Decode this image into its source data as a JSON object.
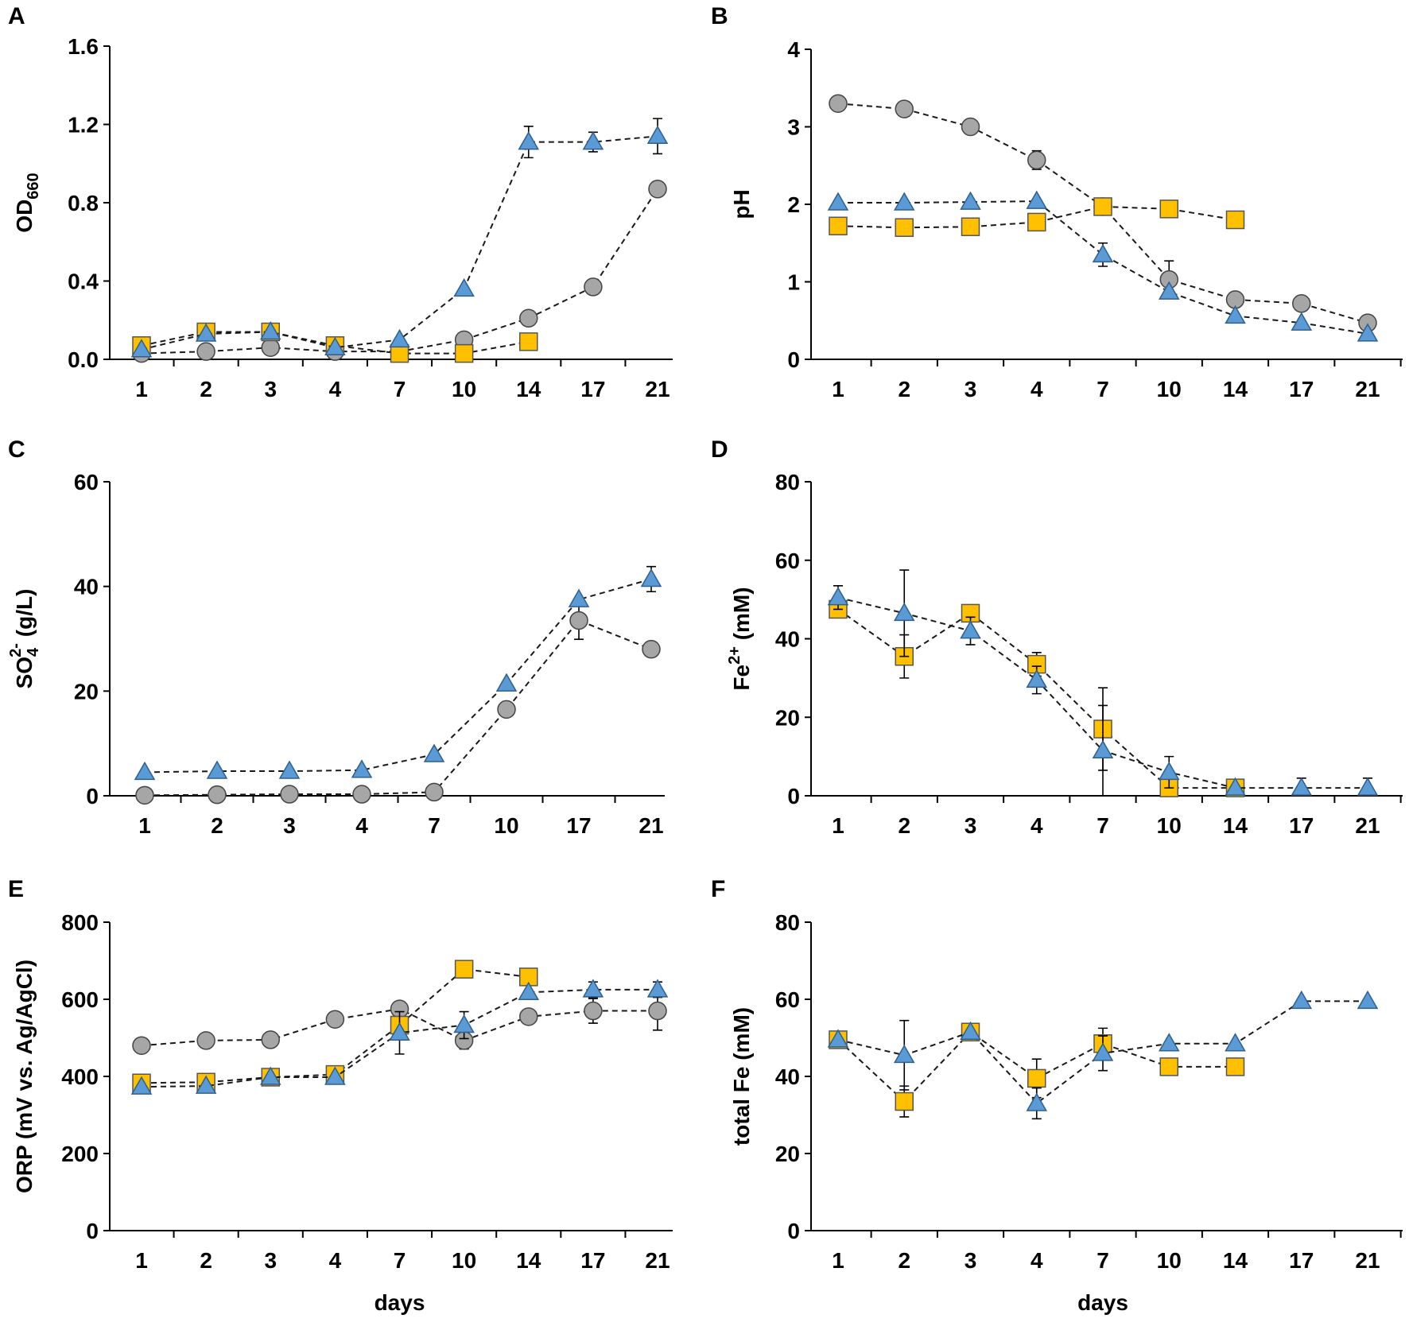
{
  "chart_data": [
    {
      "id": "A",
      "type": "line",
      "panel_label": "A",
      "categories": [
        "1",
        "2",
        "3",
        "4",
        "7",
        "10",
        "14",
        "17",
        "21"
      ],
      "ylabel": "OD",
      "ylabel_sub": "660",
      "xlabel": "",
      "ylim": [
        0,
        1.6
      ],
      "yticks": [
        "0.0",
        "0.4",
        "0.8",
        "1.2",
        "1.6"
      ],
      "series": [
        {
          "marker": "circle",
          "values": [
            0.03,
            0.04,
            0.06,
            0.04,
            0.04,
            0.1,
            0.21,
            0.37,
            0.87
          ],
          "errors": [
            0,
            0,
            0,
            0,
            0,
            0,
            0,
            0,
            0
          ]
        },
        {
          "marker": "square",
          "values": [
            0.07,
            0.14,
            0.14,
            0.07,
            0.03,
            0.03,
            0.09,
            null,
            null
          ],
          "errors": [
            0,
            0,
            0,
            0,
            0,
            0,
            0,
            null,
            null
          ]
        },
        {
          "marker": "triangle",
          "values": [
            0.05,
            0.13,
            0.14,
            0.06,
            0.1,
            0.36,
            1.11,
            1.11,
            1.14
          ],
          "errors": [
            0,
            0,
            0,
            0,
            0,
            0,
            0.08,
            0.05,
            0.09
          ]
        }
      ]
    },
    {
      "id": "B",
      "type": "line",
      "panel_label": "B",
      "categories": [
        "1",
        "2",
        "3",
        "4",
        "7",
        "10",
        "14",
        "17",
        "21"
      ],
      "ylabel": "pH",
      "ylabel_sub": "",
      "xlabel": "",
      "ylim": [
        0,
        4
      ],
      "yticks": [
        "0",
        "1",
        "2",
        "3",
        "4"
      ],
      "series": [
        {
          "marker": "circle",
          "values": [
            3.3,
            3.23,
            3.0,
            2.57,
            1.97,
            1.03,
            0.77,
            0.72,
            0.47
          ],
          "errors": [
            0,
            0,
            0,
            0.12,
            0,
            0.24,
            0,
            0,
            0
          ]
        },
        {
          "marker": "square",
          "values": [
            1.72,
            1.7,
            1.71,
            1.77,
            1.97,
            1.94,
            1.8,
            null,
            null
          ],
          "errors": [
            0,
            0,
            0,
            0,
            0,
            0,
            0,
            null,
            null
          ]
        },
        {
          "marker": "triangle",
          "values": [
            2.02,
            2.02,
            2.03,
            2.04,
            1.35,
            0.87,
            0.56,
            0.47,
            0.33
          ],
          "errors": [
            0,
            0,
            0,
            0,
            0.15,
            0,
            0,
            0,
            0
          ]
        }
      ]
    },
    {
      "id": "C",
      "type": "line",
      "panel_label": "C",
      "categories": [
        "1",
        "2",
        "3",
        "4",
        "7",
        "10",
        "17",
        "21"
      ],
      "ylabel": "SO",
      "ylabel_sub": "4",
      "ylabel_sup": "2-",
      "ylabel_tail": " (g/L)",
      "xlabel": "",
      "ylim": [
        0,
        60
      ],
      "yticks": [
        "0",
        "20",
        "40",
        "60"
      ],
      "series": [
        {
          "marker": "circle",
          "values": [
            0.1,
            0.2,
            0.3,
            0.3,
            0.7,
            16.5,
            33.5,
            28.0
          ],
          "errors": [
            0,
            0,
            0,
            0,
            0,
            0,
            3.6,
            0
          ]
        },
        {
          "marker": "triangle",
          "values": [
            4.5,
            4.7,
            4.7,
            4.9,
            7.9,
            21.4,
            37.5,
            41.4
          ],
          "errors": [
            0,
            0,
            0,
            0,
            0,
            0,
            0,
            2.4
          ]
        }
      ]
    },
    {
      "id": "D",
      "type": "line",
      "panel_label": "D",
      "categories": [
        "1",
        "2",
        "3",
        "4",
        "7",
        "10",
        "14",
        "17",
        "21"
      ],
      "ylabel": "Fe",
      "ylabel_sub": "",
      "ylabel_sup": "2+",
      "ylabel_tail": " (mM)",
      "xlabel": "",
      "ylim": [
        0,
        80
      ],
      "yticks": [
        "0",
        "20",
        "40",
        "60",
        "80"
      ],
      "series": [
        {
          "marker": "square",
          "values": [
            47.5,
            35.5,
            46.5,
            33.5,
            17.0,
            2.0,
            2.0,
            null,
            null
          ],
          "errors": [
            2.0,
            5.5,
            0,
            3.0,
            10.5,
            0,
            0,
            null,
            null
          ]
        },
        {
          "marker": "triangle",
          "values": [
            50.5,
            46.5,
            42.0,
            29.5,
            11.5,
            6.0,
            2.0,
            2.0,
            2.0
          ],
          "errors": [
            3.0,
            11.0,
            3.5,
            3.5,
            11.5,
            4.0,
            0,
            2.5,
            2.5
          ]
        }
      ]
    },
    {
      "id": "E",
      "type": "line",
      "panel_label": "E",
      "categories": [
        "1",
        "2",
        "3",
        "4",
        "7",
        "10",
        "14",
        "17",
        "21"
      ],
      "ylabel": "ORP (mV vs. Ag/AgCl)",
      "ylabel_sub": "",
      "xlabel": "days",
      "ylim": [
        0,
        800
      ],
      "yticks": [
        "0",
        "200",
        "400",
        "600",
        "800"
      ],
      "series": [
        {
          "marker": "circle",
          "values": [
            480,
            493,
            495,
            548,
            575,
            493,
            555,
            570,
            570
          ],
          "errors": [
            0,
            0,
            0,
            0,
            0,
            22,
            0,
            32,
            50
          ]
        },
        {
          "marker": "square",
          "values": [
            383,
            385,
            398,
            405,
            533,
            678,
            658,
            null,
            null
          ],
          "errors": [
            0,
            0,
            0,
            0,
            0,
            0,
            0,
            null,
            null
          ]
        },
        {
          "marker": "triangle",
          "values": [
            373,
            375,
            398,
            398,
            513,
            533,
            618,
            625,
            625
          ],
          "errors": [
            0,
            0,
            0,
            0,
            55,
            35,
            0,
            20,
            20
          ]
        }
      ]
    },
    {
      "id": "F",
      "type": "line",
      "panel_label": "F",
      "categories": [
        "1",
        "2",
        "3",
        "4",
        "7",
        "10",
        "14",
        "17",
        "21"
      ],
      "ylabel": "total Fe (mM)",
      "ylabel_sub": "",
      "xlabel": "days",
      "ylim": [
        0,
        80
      ],
      "yticks": [
        "0",
        "20",
        "40",
        "60",
        "80"
      ],
      "series": [
        {
          "marker": "square",
          "values": [
            49.5,
            33.5,
            51.5,
            39.5,
            48.5,
            42.5,
            42.5,
            null,
            null
          ],
          "errors": [
            0,
            4.0,
            0,
            5.0,
            4.0,
            0,
            0,
            null,
            null
          ]
        },
        {
          "marker": "triangle",
          "values": [
            49.5,
            45.5,
            51.5,
            33.0,
            46.0,
            48.5,
            48.5,
            59.5,
            59.5
          ],
          "errors": [
            0,
            9.0,
            0,
            4.0,
            4.5,
            0,
            0,
            0,
            0
          ]
        }
      ]
    }
  ]
}
